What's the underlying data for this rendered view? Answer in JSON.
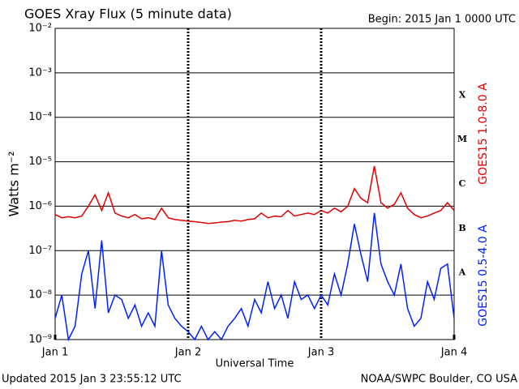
{
  "chart_data": {
    "type": "line",
    "title": "GOES Xray Flux (5 minute data)",
    "subtitle": "Begin:  2015 Jan 1 0000 UTC",
    "footer_left": "Updated 2015 Jan  3 23:55:12 UTC",
    "footer_right": "NOAA/SWPC Boulder, CO USA",
    "xlabel": "Universal Time",
    "ylabel": "Watts m⁻²",
    "log_y": true,
    "grid": true,
    "flare_classes": [
      "X",
      "M",
      "C",
      "B",
      "A"
    ],
    "xlim": [
      0,
      3
    ],
    "xticks": [
      {
        "value": 0,
        "label": "Jan 1"
      },
      {
        "value": 1,
        "label": "Jan 2"
      },
      {
        "value": 2,
        "label": "Jan 3"
      },
      {
        "value": 3,
        "label": "Jan 4"
      }
    ],
    "ylim": [
      1e-09,
      0.01
    ],
    "yticks": [
      {
        "value": 0.01,
        "label": "10⁻²"
      },
      {
        "value": 0.001,
        "label": "10⁻³"
      },
      {
        "value": 0.0001,
        "label": "10⁻⁴"
      },
      {
        "value": 1e-05,
        "label": "10⁻⁵"
      },
      {
        "value": 1e-06,
        "label": "10⁻⁶"
      },
      {
        "value": 1e-07,
        "label": "10⁻⁷"
      },
      {
        "value": 1e-08,
        "label": "10⁻⁸"
      },
      {
        "value": 1e-09,
        "label": "10⁻⁹"
      }
    ],
    "x": [
      0,
      0.05,
      0.1,
      0.15,
      0.2,
      0.25,
      0.3,
      0.35,
      0.4,
      0.45,
      0.5,
      0.55,
      0.6,
      0.65,
      0.7,
      0.75,
      0.8,
      0.85,
      0.9,
      0.95,
      1,
      1.05,
      1.1,
      1.15,
      1.2,
      1.25,
      1.3,
      1.35,
      1.4,
      1.45,
      1.5,
      1.55,
      1.6,
      1.65,
      1.7,
      1.75,
      1.8,
      1.85,
      1.9,
      1.95,
      2,
      2.05,
      2.1,
      2.15,
      2.2,
      2.25,
      2.3,
      2.35,
      2.4,
      2.45,
      2.5,
      2.55,
      2.6,
      2.65,
      2.7,
      2.75,
      2.8,
      2.85,
      2.9,
      2.95,
      3
    ],
    "series": [
      {
        "name": "GOES15 1.0-8.0 A",
        "color": "#e00000",
        "values": [
          6.5e-07,
          5.5e-07,
          5.8e-07,
          5.5e-07,
          6e-07,
          1e-06,
          1.8e-06,
          8e-07,
          2e-06,
          7e-07,
          6e-07,
          5.5e-07,
          6.5e-07,
          5.2e-07,
          5.5e-07,
          5e-07,
          9e-07,
          5.5e-07,
          5e-07,
          4.8e-07,
          4.6e-07,
          4.5e-07,
          4.3e-07,
          4.1e-07,
          4.2e-07,
          4.4e-07,
          4.5e-07,
          4.8e-07,
          4.6e-07,
          5e-07,
          5.2e-07,
          7e-07,
          5.5e-07,
          6e-07,
          5.8e-07,
          8e-07,
          6e-07,
          6.5e-07,
          7e-07,
          6.5e-07,
          8e-07,
          7e-07,
          9e-07,
          7.5e-07,
          1e-06,
          2.5e-06,
          1.5e-06,
          1.2e-06,
          8e-06,
          1.2e-06,
          9e-07,
          1.1e-06,
          2e-06,
          9e-07,
          6.5e-07,
          5.5e-07,
          6e-07,
          7e-07,
          8e-07,
          1.2e-06,
          8e-07
        ]
      },
      {
        "name": "GOES15 0.5-4.0 A",
        "color": "#0020ff",
        "values": [
          3e-09,
          1e-08,
          1e-09,
          2e-09,
          3e-08,
          1e-07,
          5e-09,
          1.7e-07,
          4e-09,
          1e-08,
          8e-09,
          3e-09,
          6e-09,
          2e-09,
          4e-09,
          2e-09,
          1e-07,
          6e-09,
          3e-09,
          2e-09,
          1.5e-09,
          1e-09,
          2e-09,
          1e-09,
          1.5e-09,
          1e-09,
          2e-09,
          3e-09,
          5e-09,
          2e-09,
          8e-09,
          4e-09,
          2e-08,
          5e-09,
          1e-08,
          3e-09,
          2e-08,
          8e-09,
          1e-08,
          5e-09,
          1e-08,
          6e-09,
          3e-08,
          1e-08,
          5e-08,
          4e-07,
          8e-08,
          2e-08,
          7e-07,
          5e-08,
          2e-08,
          1e-08,
          5e-08,
          5e-09,
          2e-09,
          3e-09,
          2e-08,
          8e-09,
          4e-08,
          5e-08,
          3e-09
        ]
      }
    ]
  }
}
